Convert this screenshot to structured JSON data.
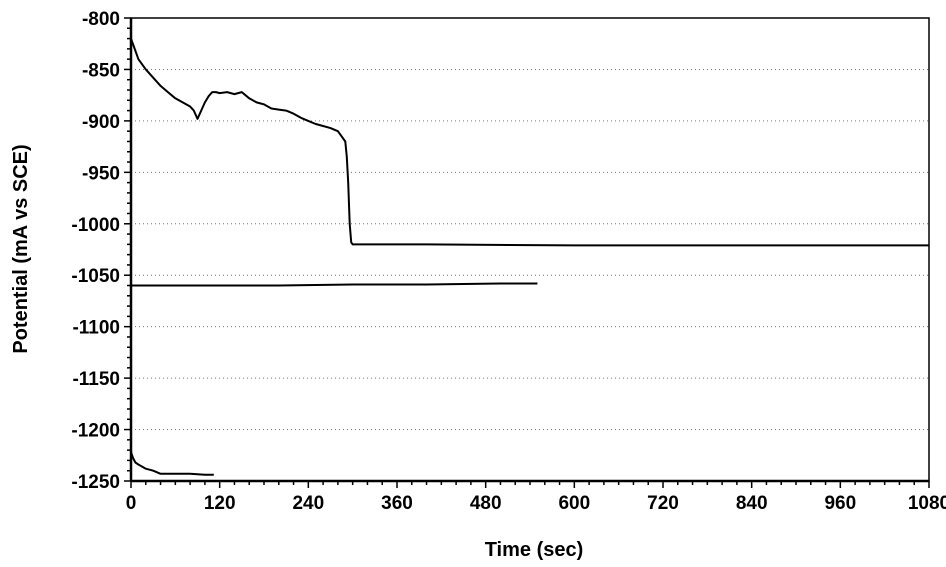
{
  "chart_data": {
    "type": "line",
    "xlabel": "Time (sec)",
    "ylabel": "Potential (mA vs SCE)",
    "xlim": [
      0,
      1080
    ],
    "ylim": [
      -1250,
      -800
    ],
    "x_ticks": [
      0,
      120,
      240,
      360,
      480,
      600,
      720,
      840,
      960,
      1080
    ],
    "y_ticks": [
      -800,
      -850,
      -900,
      -950,
      -1000,
      -1050,
      -1100,
      -1150,
      -1200,
      -1250
    ],
    "grid": "horizontal dotted",
    "legend": "none",
    "line_color": "#000000",
    "series": [
      {
        "x": [
          0,
          5,
          10,
          20,
          30,
          40,
          50,
          60,
          70,
          80,
          85,
          90,
          95,
          100,
          105,
          110,
          115,
          120,
          130,
          140,
          150,
          160,
          170,
          180,
          190,
          200,
          210,
          220,
          230,
          240,
          250,
          260,
          270,
          280,
          285,
          290,
          292,
          294,
          296,
          298,
          300,
          320,
          400,
          600,
          800,
          1000,
          1080
        ],
        "y": [
          -820,
          -830,
          -840,
          -850,
          -858,
          -866,
          -872,
          -878,
          -882,
          -886,
          -890,
          -898,
          -890,
          -882,
          -876,
          -872,
          -872,
          -873,
          -872,
          -874,
          -872,
          -878,
          -882,
          -884,
          -888,
          -889,
          -890,
          -893,
          -897,
          -900,
          -903,
          -905,
          -907,
          -910,
          -915,
          -920,
          -935,
          -960,
          -1000,
          -1018,
          -1020,
          -1020,
          -1020,
          -1021,
          -1021,
          -1021,
          -1021
        ]
      },
      {
        "x": [
          0,
          50,
          100,
          200,
          300,
          400,
          500,
          550
        ],
        "y": [
          -1060,
          -1060,
          -1060,
          -1060,
          -1059,
          -1059,
          -1058,
          -1058
        ]
      },
      {
        "x": [
          0,
          3,
          6,
          10,
          15,
          20,
          30,
          40,
          50,
          60,
          80,
          100,
          112
        ],
        "y": [
          -1222,
          -1228,
          -1232,
          -1234,
          -1236,
          -1238,
          -1240,
          -1243,
          -1243,
          -1243,
          -1243,
          -1244,
          -1244
        ]
      }
    ]
  }
}
